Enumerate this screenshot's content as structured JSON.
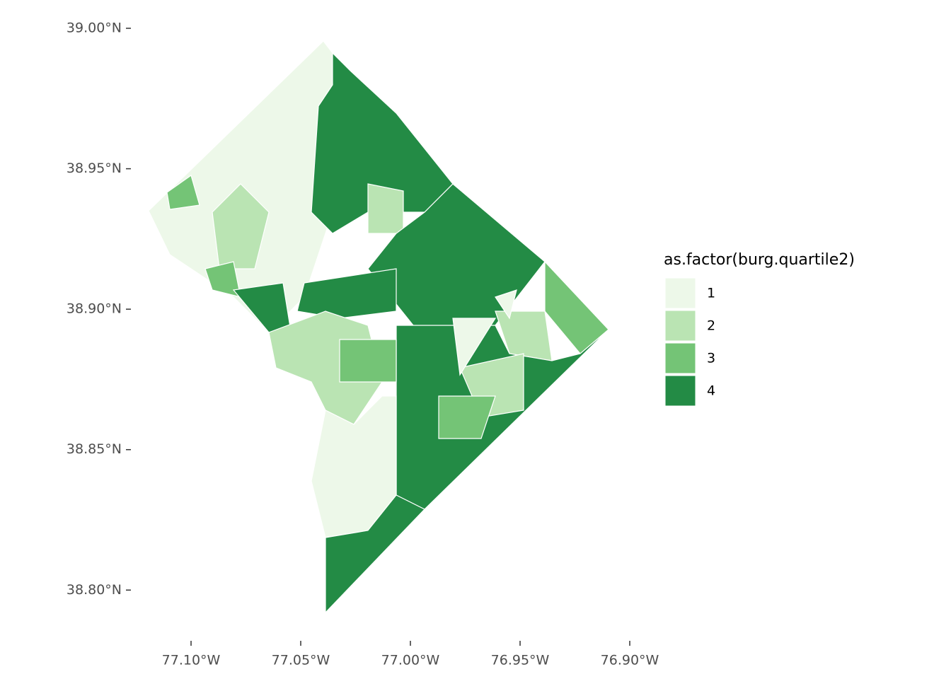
{
  "chart_data": {
    "type": "choropleth",
    "legend_title": "as.factor(burg.quartile2)",
    "series": [
      {
        "name": "1",
        "color": "#edf8e9"
      },
      {
        "name": "2",
        "color": "#bae4b3"
      },
      {
        "name": "3",
        "color": "#74c476"
      },
      {
        "name": "4",
        "color": "#238b45"
      }
    ],
    "values": [
      1,
      2,
      3,
      3,
      4,
      4,
      2,
      4,
      3,
      2,
      4,
      2,
      4,
      2,
      3,
      1,
      4,
      1,
      3,
      1
    ],
    "xlim": [
      -77.12,
      -76.89
    ],
    "ylim": [
      38.79,
      39.0
    ],
    "xticks": [
      {
        "value": -77.1,
        "label": "77.10°W"
      },
      {
        "value": -77.05,
        "label": "77.05°W"
      },
      {
        "value": -77.0,
        "label": "77.00°W"
      },
      {
        "value": -76.95,
        "label": "76.95°W"
      },
      {
        "value": -76.9,
        "label": "76.90°W"
      }
    ],
    "yticks": [
      {
        "value": 38.8,
        "label": "38.80°N"
      },
      {
        "value": 38.85,
        "label": "38.85°N"
      },
      {
        "value": 38.9,
        "label": "38.90°N"
      },
      {
        "value": 38.95,
        "label": "38.95°N"
      },
      {
        "value": 39.0,
        "label": "39.00°N"
      }
    ],
    "grid": false
  }
}
